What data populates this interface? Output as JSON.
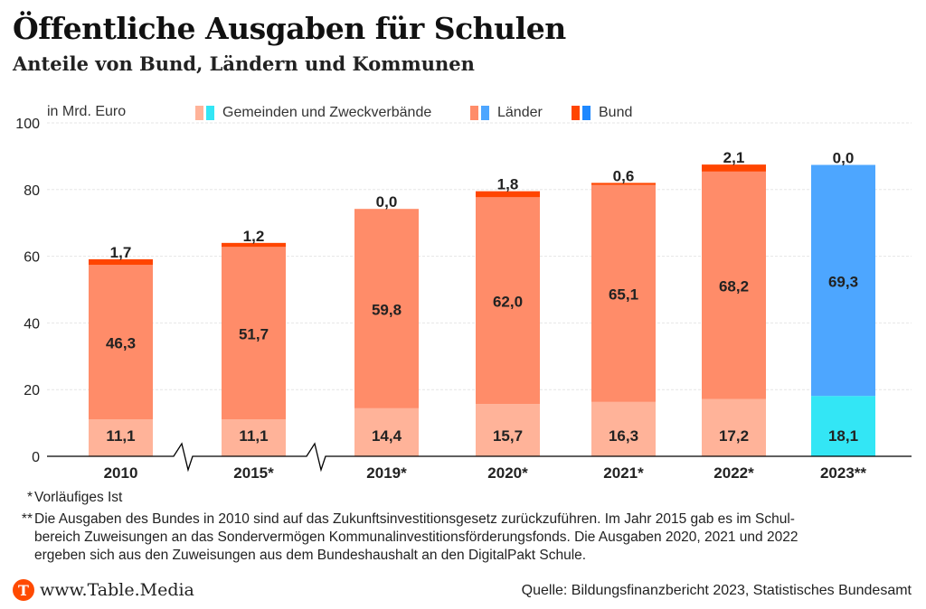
{
  "header": {
    "title": "Öffentliche Ausgaben für Schulen",
    "subtitle": "Anteile von Bund, Ländern und Kommunen"
  },
  "colors": {
    "gemeinden": "#ffb399",
    "laender": "#ff8c69",
    "bund": "#ff4500",
    "gemeinden_2023": "#33e6f5",
    "laender_2023": "#4da6ff",
    "bund_2023": "#1e88ff",
    "grid": "#e6e6e6",
    "axis": "#000000"
  },
  "chart_data": {
    "type": "bar",
    "stacked": true,
    "title": "Öffentliche Ausgaben für Schulen",
    "subtitle": "Anteile von Bund, Ländern und Kommunen",
    "ylabel": "in Mrd. Euro",
    "xlabel": "",
    "ylim": [
      0,
      100
    ],
    "yticks": [
      0,
      20,
      40,
      60,
      80,
      100
    ],
    "grid": true,
    "legend_position": "top",
    "categories": [
      "2010",
      "2015*",
      "2019*",
      "2020*",
      "2021*",
      "2022*",
      "2023**"
    ],
    "axis_breaks_after": [
      "2010",
      "2015*"
    ],
    "series": [
      {
        "name": "Gemeinden und Zweckverbände",
        "values": [
          11.1,
          11.1,
          14.4,
          15.7,
          16.3,
          17.2,
          18.1
        ],
        "labels": [
          "11,1",
          "11,1",
          "14,4",
          "15,7",
          "16,3",
          "17,2",
          "18,1"
        ]
      },
      {
        "name": "Länder",
        "values": [
          46.3,
          51.7,
          59.8,
          62.0,
          65.1,
          68.2,
          69.3
        ],
        "labels": [
          "46,3",
          "51,7",
          "59,8",
          "62,0",
          "65,1",
          "68,2",
          "69,3"
        ]
      },
      {
        "name": "Bund",
        "values": [
          1.7,
          1.2,
          0.0,
          1.8,
          0.6,
          2.1,
          0.0
        ],
        "labels": [
          "1,7",
          "1,2",
          "0,0",
          "1,8",
          "0,6",
          "2,1",
          "0,0"
        ]
      }
    ],
    "highlight_category": "2023**",
    "legend": [
      {
        "label": "Gemeinden und Zweckverbände"
      },
      {
        "label": "Länder"
      },
      {
        "label": "Bund"
      }
    ],
    "ytick_labels": [
      "0",
      "20",
      "40",
      "60",
      "80",
      "100"
    ]
  },
  "footnotes": [
    {
      "mark": "*",
      "text": "Vorläufiges Ist"
    },
    {
      "mark": "**",
      "text": "Die Ausgaben des Bundes in 2010 sind auf das Zukunftsinvestitionsgesetz zurückzuführen. Im Jahr 2015 gab es im Schul-bereich Zuweisungen an das Sondervermögen Kommunalinvestitionsförderungsfonds. Die Ausgaben 2020, 2021 und 2022 ergeben sich aus den Zuweisungen aus dem Bundeshaushalt an den DigitalPakt Schule."
    }
  ],
  "footnote_lines": [
    "Die Ausgaben des Bundes in 2010 sind auf das Zukunftsinvestitionsgesetz zurückzuführen. Im Jahr 2015 gab es im Schul-",
    "bereich Zuweisungen an das Sondervermögen Kommunalinvestitionsförderungsfonds. Die Ausgaben 2020, 2021 und 2022",
    "ergeben sich aus den Zuweisungen aus dem Bundeshaushalt an den DigitalPakt Schule."
  ],
  "footer": {
    "logo_letter": "T",
    "brand": "www.Table.Media",
    "source": "Quelle: Bildungsfinanzbericht 2023, Statistisches Bundesamt"
  }
}
